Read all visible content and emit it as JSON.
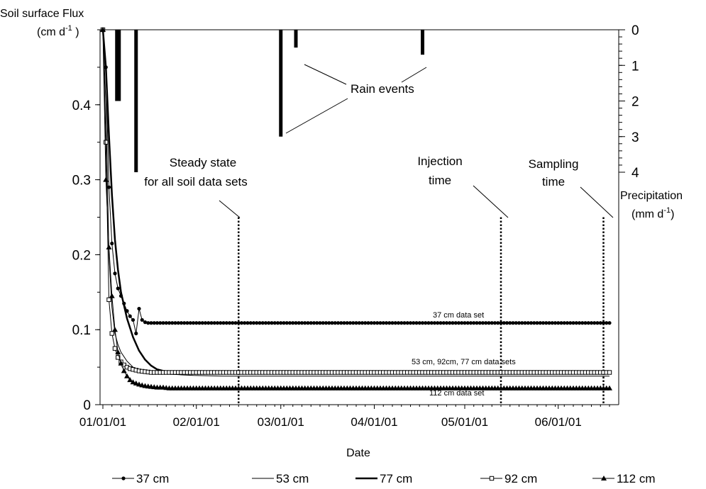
{
  "chart_data": {
    "type": "line",
    "title": "",
    "xlabel": "Date",
    "ylabel": "Soil surface Flux",
    "ylabel_unit": "(cm d",
    "ylabel_unit_sup": "-1",
    "ylabel_unit_end": " )",
    "y2label": "Precipitation",
    "y2label_unit": "(mm d",
    "y2label_unit_sup": "-1",
    "y2label_unit_end": ")",
    "xlim_days": [
      0,
      168
    ],
    "ylim": [
      0,
      0.5
    ],
    "y2lim": [
      0,
      4
    ],
    "y2_inverted": true,
    "grid": false,
    "legend_position": "bottom",
    "x_ticks": [
      {
        "label": "01/01/01",
        "day": 0
      },
      {
        "label": "02/01/01",
        "day": 31
      },
      {
        "label": "03/01/01",
        "day": 59
      },
      {
        "label": "04/01/01",
        "day": 90
      },
      {
        "label": "05/01/01",
        "day": 120
      },
      {
        "label": "06/01/01",
        "day": 151
      }
    ],
    "y_ticks": [
      {
        "label": "0",
        "value": 0
      },
      {
        "label": "0.1",
        "value": 0.1
      },
      {
        "label": "0.2",
        "value": 0.2
      },
      {
        "label": "0.3",
        "value": 0.3
      },
      {
        "label": "0.4",
        "value": 0.4
      }
    ],
    "y2_ticks": [
      {
        "label": "0",
        "value": 0
      },
      {
        "label": "1",
        "value": 1
      },
      {
        "label": "2",
        "value": 2
      },
      {
        "label": "3",
        "value": 3
      },
      {
        "label": "4",
        "value": 4
      }
    ],
    "series": [
      {
        "name": "37 cm",
        "marker": "dot",
        "lineWidth": 1,
        "x": [
          0,
          1,
          2,
          3,
          4,
          5,
          6,
          7,
          8,
          9,
          10,
          11,
          12,
          13,
          14,
          15,
          16,
          17,
          18,
          19,
          20,
          25,
          168
        ],
        "y": [
          0.5,
          0.45,
          0.29,
          0.215,
          0.175,
          0.155,
          0.145,
          0.135,
          0.125,
          0.118,
          0.113,
          0.095,
          0.128,
          0.113,
          0.11,
          0.109,
          0.109,
          0.109,
          0.109,
          0.109,
          0.109,
          0.109,
          0.109
        ]
      },
      {
        "name": "53 cm",
        "marker": "none",
        "lineWidth": 1,
        "x": [
          0,
          1,
          2,
          3,
          4,
          5,
          6,
          8,
          10,
          12,
          15,
          20,
          25,
          30,
          40,
          60,
          168
        ],
        "y": [
          0.5,
          0.4,
          0.2,
          0.13,
          0.095,
          0.08,
          0.07,
          0.058,
          0.05,
          0.046,
          0.043,
          0.041,
          0.04,
          0.039,
          0.038,
          0.038,
          0.038
        ]
      },
      {
        "name": "77 cm",
        "marker": "none",
        "lineWidth": 2.5,
        "x": [
          0,
          1,
          2,
          3,
          4,
          5,
          6,
          8,
          10,
          12,
          14,
          16,
          18,
          20,
          22,
          25,
          30,
          168
        ],
        "y": [
          0.5,
          0.45,
          0.36,
          0.28,
          0.22,
          0.18,
          0.15,
          0.115,
          0.09,
          0.072,
          0.06,
          0.052,
          0.047,
          0.045,
          0.044,
          0.043,
          0.043,
          0.043
        ]
      },
      {
        "name": "92 cm",
        "marker": "square",
        "lineWidth": 1,
        "x": [
          0,
          1,
          2,
          3,
          4,
          5,
          6,
          7,
          8,
          9,
          10,
          12,
          14,
          16,
          18,
          20,
          22,
          25,
          168
        ],
        "y": [
          0.5,
          0.35,
          0.14,
          0.095,
          0.075,
          0.063,
          0.057,
          0.053,
          0.05,
          0.048,
          0.047,
          0.045,
          0.044,
          0.043,
          0.043,
          0.043,
          0.043,
          0.043,
          0.043
        ]
      },
      {
        "name": "112 cm",
        "marker": "triangle",
        "lineWidth": 1,
        "x": [
          0,
          1,
          2,
          3,
          4,
          5,
          6,
          7,
          8,
          9,
          10,
          12,
          14,
          16,
          18,
          20,
          22,
          25,
          168
        ],
        "y": [
          0.5,
          0.3,
          0.21,
          0.145,
          0.1,
          0.07,
          0.055,
          0.045,
          0.038,
          0.033,
          0.03,
          0.027,
          0.025,
          0.024,
          0.023,
          0.023,
          0.022,
          0.022,
          0.022
        ]
      }
    ],
    "rain_events": [
      {
        "day": 5,
        "value": 2,
        "thick": true
      },
      {
        "day": 11,
        "value": 4,
        "thick": false
      },
      {
        "day": 59,
        "value": 3,
        "thick": false
      },
      {
        "day": 64,
        "value": 0.5,
        "thick": false
      },
      {
        "day": 106,
        "value": 0.7,
        "thick": false
      }
    ],
    "vertical_markers": [
      {
        "name": "steady-state",
        "day": 45,
        "top": 0.25
      },
      {
        "name": "injection",
        "day": 132,
        "top": 0.25
      },
      {
        "name": "sampling",
        "day": 166,
        "top": 0.25
      }
    ],
    "annotations": {
      "rain_events": "Rain events",
      "steady_state_line1": "Steady state",
      "steady_state_line2": "for all soil data sets",
      "injection_line1": "Injection",
      "injection_line2": "time",
      "sampling_line1": "Sampling",
      "sampling_line2": "time",
      "label_37": "37 cm data set",
      "label_mid": "53 cm, 92cm, 77 cm data sets",
      "label_112": "112 cm data set"
    }
  }
}
